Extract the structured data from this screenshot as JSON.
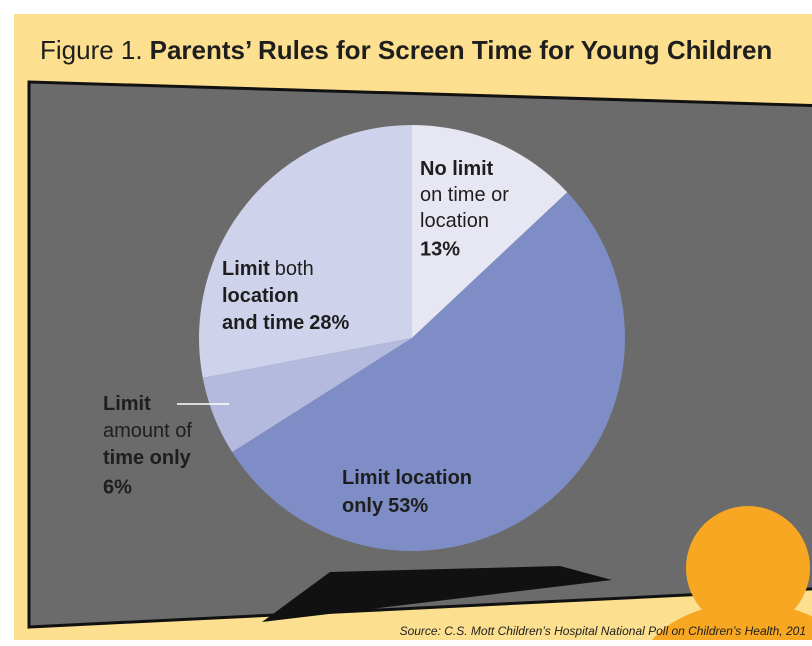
{
  "chart_data": {
    "type": "pie",
    "title_prefix": "Figure 1.",
    "title": "Parents’ Rules for Screen Time for Young Children",
    "values": [
      13,
      53,
      6,
      28
    ],
    "value_labels": [
      "13%",
      "53%",
      "6%",
      "28%"
    ],
    "colors": [
      "#e7e7f4",
      "#7f8dc6",
      "#b4b9de",
      "#cfd2eb"
    ],
    "labels": [
      [
        [
          {
            "text": "No limit",
            "bold": true
          }
        ],
        [
          {
            "text": "on time or",
            "bold": false
          }
        ],
        [
          {
            "text": "location",
            "bold": false
          }
        ]
      ],
      [
        [
          {
            "text": "Limit location",
            "bold": true
          }
        ],
        [
          {
            "text": "only",
            "bold": true
          }
        ]
      ],
      [
        [
          {
            "text": "Limit",
            "bold": true
          }
        ],
        [
          {
            "text": "amount of",
            "bold": false
          }
        ],
        [
          {
            "text": "time only",
            "bold": true
          }
        ]
      ],
      [
        [
          {
            "text": "Limit",
            "bold": true
          },
          {
            "text": "both",
            "bold": false
          }
        ],
        [
          {
            "text": "location",
            "bold": true
          }
        ],
        [
          {
            "text": "and time",
            "bold": true
          }
        ]
      ]
    ],
    "value_label_inline": [
      false,
      true,
      false,
      true
    ],
    "source": "Source: C.S. Mott Children’s Hospital National Poll on Children’s Health, 201"
  }
}
